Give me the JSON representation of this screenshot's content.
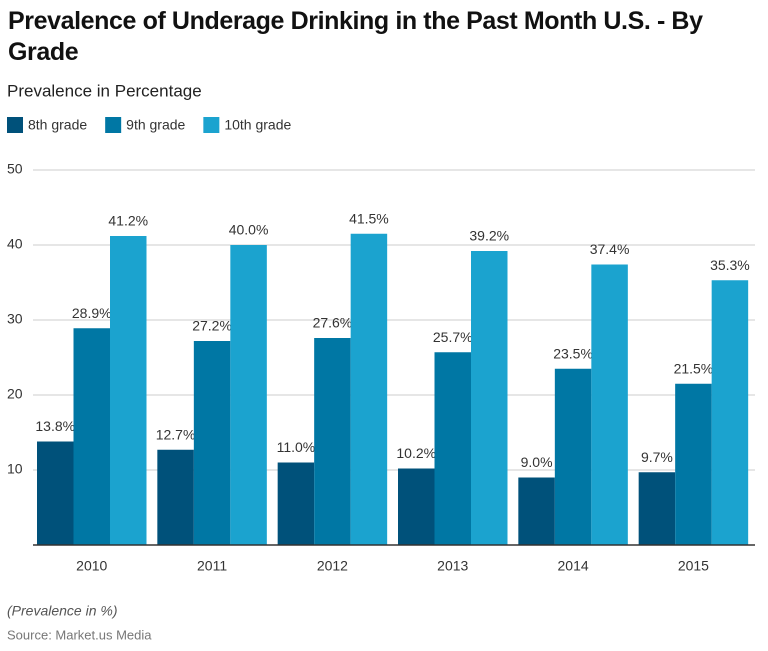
{
  "chart_data": {
    "type": "bar",
    "title": "Prevalence of Underage Drinking in the Past Month U.S. - By Grade",
    "subtitle": "Prevalence in Percentage",
    "categories": [
      "2010",
      "2011",
      "2012",
      "2013",
      "2014",
      "2015"
    ],
    "series": [
      {
        "name": "8th grade",
        "color": "#00517a",
        "values": [
          13.8,
          12.7,
          11.0,
          10.2,
          9.0,
          9.7
        ],
        "value_labels": [
          "13.8%",
          "12.7%",
          "11.0%",
          "10.2%",
          "9.0%",
          "9.7%"
        ]
      },
      {
        "name": "9th grade",
        "color": "#0077a4",
        "values": [
          28.9,
          27.2,
          27.6,
          25.7,
          23.5,
          21.5
        ],
        "value_labels": [
          "28.9%",
          "27.2%",
          "27.6%",
          "25.7%",
          "23.5%",
          "21.5%"
        ]
      },
      {
        "name": "10th grade",
        "color": "#1ba3cf",
        "values": [
          41.2,
          40.0,
          41.5,
          39.2,
          37.4,
          35.3
        ],
        "value_labels": [
          "41.2%",
          "40.0%",
          "41.5%",
          "39.2%",
          "37.4%",
          "35.3%"
        ]
      }
    ],
    "ylim": [
      0,
      50
    ],
    "yticks": [
      10,
      20,
      30,
      40,
      50
    ],
    "grid": true,
    "legend": "top-left",
    "note": "(Prevalence in %)",
    "source": "Source: Market.us Media"
  }
}
